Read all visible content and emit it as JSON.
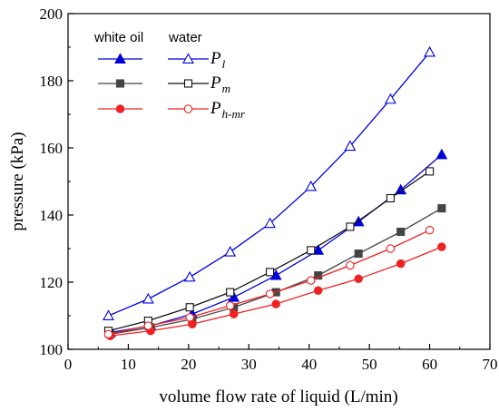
{
  "chart_data": {
    "type": "line",
    "xlabel": "volume flow rate of liquid (L/min)",
    "ylabel": "pressure (kPa)",
    "xlim": [
      0,
      70
    ],
    "ylim": [
      100,
      200
    ],
    "xticks": [
      0,
      10,
      20,
      30,
      40,
      50,
      60,
      70
    ],
    "yticks": [
      100,
      120,
      140,
      160,
      180,
      200
    ],
    "xtick_labels": [
      "0",
      "10",
      "20",
      "30",
      "40",
      "50",
      "60",
      "70"
    ],
    "ytick_labels": [
      "100",
      "120",
      "140",
      "160",
      "180",
      "200"
    ],
    "grid": false,
    "legend_position": "top-left",
    "legend_headers": [
      "white oil",
      "water"
    ],
    "legend_rows": [
      {
        "symbol": "P",
        "subscript": "l"
      },
      {
        "symbol": "P",
        "subscript": "m"
      },
      {
        "symbol": "P",
        "subscript": "h-mr"
      }
    ],
    "series": [
      {
        "key": "oil-pl",
        "color": "#0000dd",
        "marker": "triangle",
        "filled": true,
        "legend_row": 0,
        "legend_col": 0,
        "x": [
          7,
          13.7,
          20.6,
          27.5,
          34.5,
          41.5,
          48.2,
          55.2,
          62
        ],
        "y": [
          105,
          107,
          110.5,
          115.5,
          122,
          129.5,
          138,
          147.5,
          158
        ]
      },
      {
        "key": "water-pl",
        "color": "#0000dd",
        "marker": "triangle",
        "filled": false,
        "legend_row": 0,
        "legend_col": 1,
        "x": [
          6.7,
          13.3,
          20.2,
          26.9,
          33.5,
          40.3,
          46.8,
          53.5,
          60
        ],
        "y": [
          110,
          115,
          121.5,
          129,
          137.5,
          148.5,
          160.5,
          174.5,
          188.5
        ]
      },
      {
        "key": "oil-pm",
        "color": "#444444",
        "marker": "square",
        "filled": true,
        "legend_row": 1,
        "legend_col": 0,
        "x": [
          7,
          13.7,
          20.6,
          27.5,
          34.5,
          41.5,
          48.2,
          55.2,
          62
        ],
        "y": [
          104.5,
          106.5,
          109,
          112.5,
          117,
          122,
          128.5,
          135,
          142
        ]
      },
      {
        "key": "water-pm",
        "color": "#111111",
        "marker": "square",
        "filled": false,
        "legend_row": 1,
        "legend_col": 1,
        "x": [
          6.7,
          13.3,
          20.2,
          26.9,
          33.5,
          40.3,
          46.8,
          53.5,
          60
        ],
        "y": [
          105.5,
          108.5,
          112.5,
          117,
          123,
          129.5,
          136.5,
          145,
          153
        ]
      },
      {
        "key": "oil-phmr",
        "color": "#ee2222",
        "marker": "circle",
        "filled": true,
        "legend_row": 2,
        "legend_col": 0,
        "x": [
          7,
          13.7,
          20.6,
          27.5,
          34.5,
          41.5,
          48.2,
          55.2,
          62
        ],
        "y": [
          104,
          105.5,
          107.5,
          110.5,
          113.5,
          117.5,
          121,
          125.5,
          130.5
        ]
      },
      {
        "key": "water-phmr",
        "color": "#ee2222",
        "marker": "circle",
        "filled": false,
        "legend_row": 2,
        "legend_col": 1,
        "x": [
          6.7,
          13.3,
          20.2,
          26.9,
          33.5,
          40.3,
          46.8,
          53.5,
          60
        ],
        "y": [
          104.5,
          107,
          109.5,
          113,
          116.5,
          120.5,
          125,
          130,
          135.5
        ]
      }
    ]
  }
}
